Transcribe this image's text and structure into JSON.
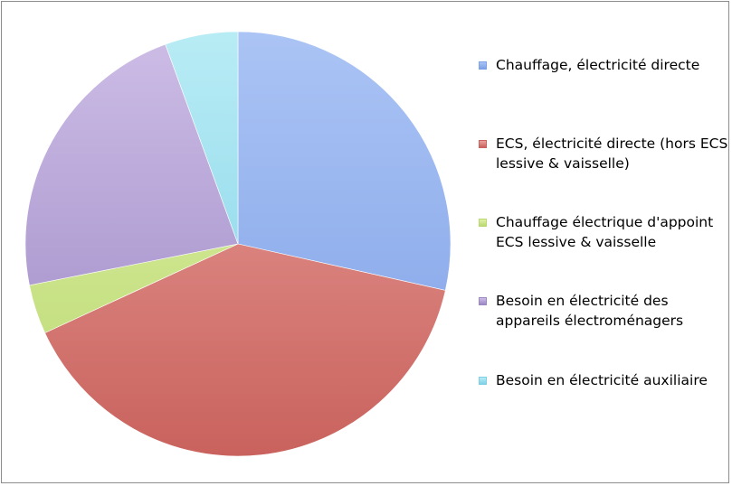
{
  "chart_data": {
    "type": "pie",
    "title": "",
    "slices": [
      {
        "label": "Chauffage, électricité directe",
        "value": 28.8,
        "color": "#7ea0e6",
        "color_light": "#abc4f5"
      },
      {
        "label": "ECS, électricité directe (hors ECS lessive & vaisselle)",
        "value": 40.0,
        "color": "#c9625d",
        "color_light": "#eba29e"
      },
      {
        "label": "Chauffage électrique d'appoint ECS lessive & vaisselle",
        "value": 3.8,
        "color": "#b9d872",
        "color_light": "#e2f2a8"
      },
      {
        "label": "Besoin en électricité des appareils électroménagers",
        "value": 22.8,
        "color": "#9b87c4",
        "color_light": "#cdbde6"
      },
      {
        "label": "Besoin en électricité auxiliaire",
        "value": 5.6,
        "color": "#7fd0e6",
        "color_light": "#b8ecf5"
      }
    ],
    "legend_position": "right"
  }
}
